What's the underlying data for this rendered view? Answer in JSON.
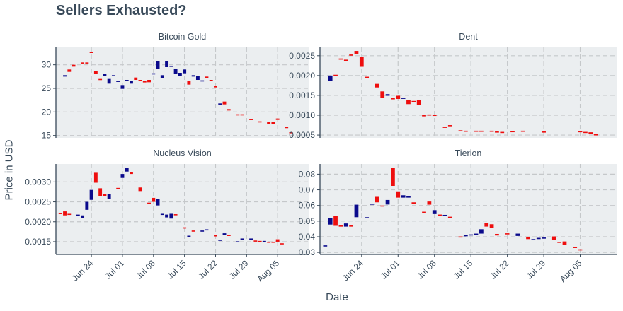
{
  "chart_data": {
    "type": "candlestick",
    "title": "Sellers Exhausted?",
    "xlabel": "Date",
    "ylabel": "Price in USD",
    "x_tick_labels": [
      "Jun 24",
      "Jul 01",
      "Jul 08",
      "Jul 15",
      "Jul 22",
      "Jul 29",
      "Aug 05"
    ],
    "x_range": [
      "2017-06-16",
      "2017-08-12"
    ],
    "grid": true,
    "colors": {
      "up": "#0a0a8c",
      "down": "#ee0e0e",
      "panel_bg": "#ebeef0",
      "grid": "#c5c8ca",
      "axis": "#384959"
    },
    "panels": [
      {
        "name": "Bitcoin Gold",
        "yticks": [
          "15",
          "20",
          "25",
          "30"
        ],
        "ylim": [
          14.5,
          33.7
        ],
        "candles": [
          [
            "2017-06-18",
            27.5,
            27.8
          ],
          [
            "2017-06-19",
            29.0,
            28.5
          ],
          [
            "2017-06-20",
            30.0,
            29.6
          ],
          [
            "2017-06-22",
            30.5,
            30.4
          ],
          [
            "2017-06-23",
            30.5,
            30.4
          ],
          [
            "2017-06-24",
            32.8,
            32.5
          ],
          [
            "2017-06-25",
            28.6,
            28.1
          ],
          [
            "2017-06-26",
            27.0,
            26.9
          ],
          [
            "2017-06-27",
            27.6,
            28.0
          ],
          [
            "2017-06-28",
            26.0,
            27.0
          ],
          [
            "2017-06-29",
            27.7,
            27.8
          ],
          [
            "2017-06-30",
            26.5,
            26.6
          ],
          [
            "2017-07-01",
            24.9,
            25.7
          ],
          [
            "2017-07-02",
            26.6,
            26.8
          ],
          [
            "2017-07-03",
            26.0,
            26.6
          ],
          [
            "2017-07-04",
            27.3,
            26.8
          ],
          [
            "2017-07-05",
            26.8,
            26.7
          ],
          [
            "2017-07-06",
            26.5,
            26.4
          ],
          [
            "2017-07-07",
            26.8,
            26.3
          ],
          [
            "2017-07-08",
            28.0,
            28.2
          ],
          [
            "2017-07-09",
            29.2,
            30.8
          ],
          [
            "2017-07-10",
            27.2,
            27.8
          ],
          [
            "2017-07-11",
            29.5,
            30.8
          ],
          [
            "2017-07-12",
            29.6,
            29.8
          ],
          [
            "2017-07-13",
            28.0,
            29.2
          ],
          [
            "2017-07-14",
            27.6,
            28.3
          ],
          [
            "2017-07-15",
            28.2,
            29.0
          ],
          [
            "2017-07-16",
            26.6,
            25.8
          ],
          [
            "2017-07-17",
            27.5,
            27.8
          ],
          [
            "2017-07-18",
            26.8,
            27.6
          ],
          [
            "2017-07-19",
            26.5,
            26.7
          ],
          [
            "2017-07-20",
            27.5,
            27.2
          ],
          [
            "2017-07-21",
            26.8,
            26.6
          ],
          [
            "2017-07-22",
            25.5,
            25.2
          ],
          [
            "2017-07-23",
            21.7,
            21.8
          ],
          [
            "2017-07-24",
            22.2,
            21.6
          ],
          [
            "2017-07-25",
            20.6,
            20.3
          ],
          [
            "2017-07-27",
            19.5,
            19.3
          ],
          [
            "2017-07-28",
            19.5,
            19.4
          ],
          [
            "2017-07-30",
            18.5,
            18.3
          ],
          [
            "2017-08-01",
            18.0,
            17.8
          ],
          [
            "2017-08-03",
            17.9,
            17.5
          ],
          [
            "2017-08-04",
            17.8,
            17.4
          ],
          [
            "2017-08-05",
            18.6,
            18.3
          ],
          [
            "2017-08-07",
            16.8,
            16.6
          ],
          [
            "2017-08-08",
            15.7,
            15.5
          ]
        ]
      },
      {
        "name": "Dent",
        "yticks": [
          "0.0005",
          "0.0010",
          "0.0015",
          "0.0020",
          "0.0025"
        ],
        "ylim": [
          0.00043,
          0.00271
        ],
        "candles": [
          [
            "2017-06-18",
            0.00187,
            0.002
          ],
          [
            "2017-06-19",
            0.00202,
            0.002
          ],
          [
            "2017-06-20",
            0.00243,
            0.0024
          ],
          [
            "2017-06-21",
            0.0024,
            0.00236
          ],
          [
            "2017-06-22",
            0.00253,
            0.0025
          ],
          [
            "2017-06-23",
            0.00262,
            0.00255
          ],
          [
            "2017-06-24",
            0.00247,
            0.00222
          ],
          [
            "2017-06-25",
            0.00197,
            0.00196
          ],
          [
            "2017-06-27",
            0.00179,
            0.0017
          ],
          [
            "2017-06-28",
            0.0016,
            0.00143
          ],
          [
            "2017-06-29",
            0.00149,
            0.00153
          ],
          [
            "2017-06-30",
            0.00143,
            0.0014
          ],
          [
            "2017-07-01",
            0.00149,
            0.00141
          ],
          [
            "2017-07-02",
            0.00143,
            0.00144
          ],
          [
            "2017-07-03",
            0.00138,
            0.00128
          ],
          [
            "2017-07-04",
            0.00136,
            0.00135
          ],
          [
            "2017-07-05",
            0.00138,
            0.00126
          ],
          [
            "2017-07-06",
            0.001,
            0.00099
          ],
          [
            "2017-07-07",
            0.00102,
            0.00101
          ],
          [
            "2017-07-08",
            0.00101,
            0.001
          ],
          [
            "2017-07-10",
            0.00071,
            0.0007
          ],
          [
            "2017-07-11",
            0.00075,
            0.00074
          ],
          [
            "2017-07-13",
            0.00062,
            0.00061
          ],
          [
            "2017-07-14",
            0.00061,
            0.0006
          ],
          [
            "2017-07-16",
            0.00061,
            0.0006
          ],
          [
            "2017-07-17",
            0.00061,
            0.0006
          ],
          [
            "2017-07-19",
            0.00061,
            0.0006
          ],
          [
            "2017-07-20",
            0.00059,
            0.00058
          ],
          [
            "2017-07-21",
            0.00058,
            0.00057
          ],
          [
            "2017-07-23",
            0.0006,
            0.00059
          ],
          [
            "2017-07-25",
            0.00061,
            0.00059
          ],
          [
            "2017-07-29",
            0.00059,
            0.00057
          ],
          [
            "2017-08-05",
            0.0006,
            0.00057
          ],
          [
            "2017-08-06",
            0.00058,
            0.00057
          ],
          [
            "2017-08-07",
            0.00057,
            0.00053
          ],
          [
            "2017-08-08",
            0.00052,
            0.00051
          ]
        ]
      },
      {
        "name": "Nucleus Vision",
        "yticks": [
          "0.0015",
          "0.0020",
          "0.0025",
          "0.0030"
        ],
        "ylim": [
          0.00118,
          0.00345
        ],
        "candles": [
          [
            "2017-06-17",
            0.00222,
            0.0022
          ],
          [
            "2017-06-18",
            0.00226,
            0.00216
          ],
          [
            "2017-06-19",
            0.0022,
            0.00219
          ],
          [
            "2017-06-21",
            0.00214,
            0.00218
          ],
          [
            "2017-06-22",
            0.00209,
            0.00216
          ],
          [
            "2017-06-23",
            0.0023,
            0.0025
          ],
          [
            "2017-06-24",
            0.00255,
            0.0028
          ],
          [
            "2017-06-25",
            0.00323,
            0.00298
          ],
          [
            "2017-06-26",
            0.00284,
            0.00264
          ],
          [
            "2017-06-27",
            0.0027,
            0.00265
          ],
          [
            "2017-06-28",
            0.00258,
            0.0027
          ],
          [
            "2017-06-30",
            0.00285,
            0.00284
          ],
          [
            "2017-07-01",
            0.0031,
            0.0032
          ],
          [
            "2017-07-02",
            0.00326,
            0.00335
          ],
          [
            "2017-07-03",
            0.00324,
            0.0032
          ],
          [
            "2017-07-05",
            0.00286,
            0.00277
          ],
          [
            "2017-07-07",
            0.00248,
            0.00247
          ],
          [
            "2017-07-08",
            0.0026,
            0.0025
          ],
          [
            "2017-07-09",
            0.00241,
            0.00257
          ],
          [
            "2017-07-10",
            0.00218,
            0.0022
          ],
          [
            "2017-07-11",
            0.00211,
            0.00218
          ],
          [
            "2017-07-12",
            0.00208,
            0.0022
          ],
          [
            "2017-07-13",
            0.00219,
            0.00218
          ],
          [
            "2017-07-15",
            0.00186,
            0.00183
          ],
          [
            "2017-07-16",
            0.00163,
            0.00165
          ],
          [
            "2017-07-17",
            0.00178,
            0.00176
          ],
          [
            "2017-07-19",
            0.00177,
            0.00178
          ],
          [
            "2017-07-20",
            0.0018,
            0.00181
          ],
          [
            "2017-07-22",
            0.00166,
            0.00165
          ],
          [
            "2017-07-23",
            0.00153,
            0.00155
          ],
          [
            "2017-07-24",
            0.00167,
            0.00171
          ],
          [
            "2017-07-25",
            0.00167,
            0.00165
          ],
          [
            "2017-07-27",
            0.0015,
            0.00151
          ],
          [
            "2017-07-28",
            0.00156,
            0.00158
          ],
          [
            "2017-07-30",
            0.00155,
            0.00158
          ],
          [
            "2017-07-31",
            0.00153,
            0.00152
          ],
          [
            "2017-08-01",
            0.00152,
            0.00151
          ],
          [
            "2017-08-02",
            0.0015,
            0.00152
          ],
          [
            "2017-08-03",
            0.0015,
            0.00149
          ],
          [
            "2017-08-04",
            0.0015,
            0.00149
          ],
          [
            "2017-08-05",
            0.00156,
            0.0015
          ],
          [
            "2017-08-06",
            0.00146,
            0.00145
          ]
        ]
      },
      {
        "name": "Tierion",
        "yticks": [
          "0.03",
          "0.04",
          "0.05",
          "0.06",
          "0.07",
          "0.08"
        ],
        "ylim": [
          0.0287,
          0.0865
        ],
        "candles": [
          [
            "2017-06-17",
            0.0342,
            0.0345
          ],
          [
            "2017-06-18",
            0.0478,
            0.052
          ],
          [
            "2017-06-19",
            0.0535,
            0.047
          ],
          [
            "2017-06-20",
            0.0472,
            0.047
          ],
          [
            "2017-06-21",
            0.0465,
            0.0485
          ],
          [
            "2017-06-22",
            0.0472,
            0.0468
          ],
          [
            "2017-06-23",
            0.0525,
            0.0605
          ],
          [
            "2017-06-25",
            0.052,
            0.0525
          ],
          [
            "2017-06-26",
            0.061,
            0.0612
          ],
          [
            "2017-06-27",
            0.0655,
            0.062
          ],
          [
            "2017-06-28",
            0.06,
            0.0595
          ],
          [
            "2017-06-29",
            0.0606,
            0.0635
          ],
          [
            "2017-06-30",
            0.084,
            0.0725
          ],
          [
            "2017-07-01",
            0.069,
            0.065
          ],
          [
            "2017-07-02",
            0.065,
            0.0665
          ],
          [
            "2017-07-03",
            0.065,
            0.066
          ],
          [
            "2017-07-04",
            0.062,
            0.061
          ],
          [
            "2017-07-06",
            0.056,
            0.0555
          ],
          [
            "2017-07-07",
            0.0625,
            0.0605
          ],
          [
            "2017-07-08",
            0.0545,
            0.057
          ],
          [
            "2017-07-09",
            0.0542,
            0.054
          ],
          [
            "2017-07-10",
            0.0538,
            0.054
          ],
          [
            "2017-07-11",
            0.0528,
            0.052
          ],
          [
            "2017-07-13",
            0.0402,
            0.04
          ],
          [
            "2017-07-14",
            0.0408,
            0.041
          ],
          [
            "2017-07-15",
            0.0413,
            0.0415
          ],
          [
            "2017-07-16",
            0.0418,
            0.042
          ],
          [
            "2017-07-17",
            0.042,
            0.0448
          ],
          [
            "2017-07-18",
            0.0488,
            0.0465
          ],
          [
            "2017-07-19",
            0.048,
            0.0455
          ],
          [
            "2017-07-20",
            0.0418,
            0.0408
          ],
          [
            "2017-07-22",
            0.0422,
            0.042
          ],
          [
            "2017-07-24",
            0.0405,
            0.042
          ],
          [
            "2017-07-26",
            0.0398,
            0.0385
          ],
          [
            "2017-07-27",
            0.0378,
            0.0385
          ],
          [
            "2017-07-28",
            0.0385,
            0.0393
          ],
          [
            "2017-07-29",
            0.039,
            0.0395
          ],
          [
            "2017-07-31",
            0.0402,
            0.0378
          ],
          [
            "2017-08-01",
            0.0368,
            0.0365
          ],
          [
            "2017-08-02",
            0.037,
            0.035
          ],
          [
            "2017-08-04",
            0.0335,
            0.033
          ],
          [
            "2017-08-05",
            0.032,
            0.0315
          ]
        ]
      }
    ]
  }
}
